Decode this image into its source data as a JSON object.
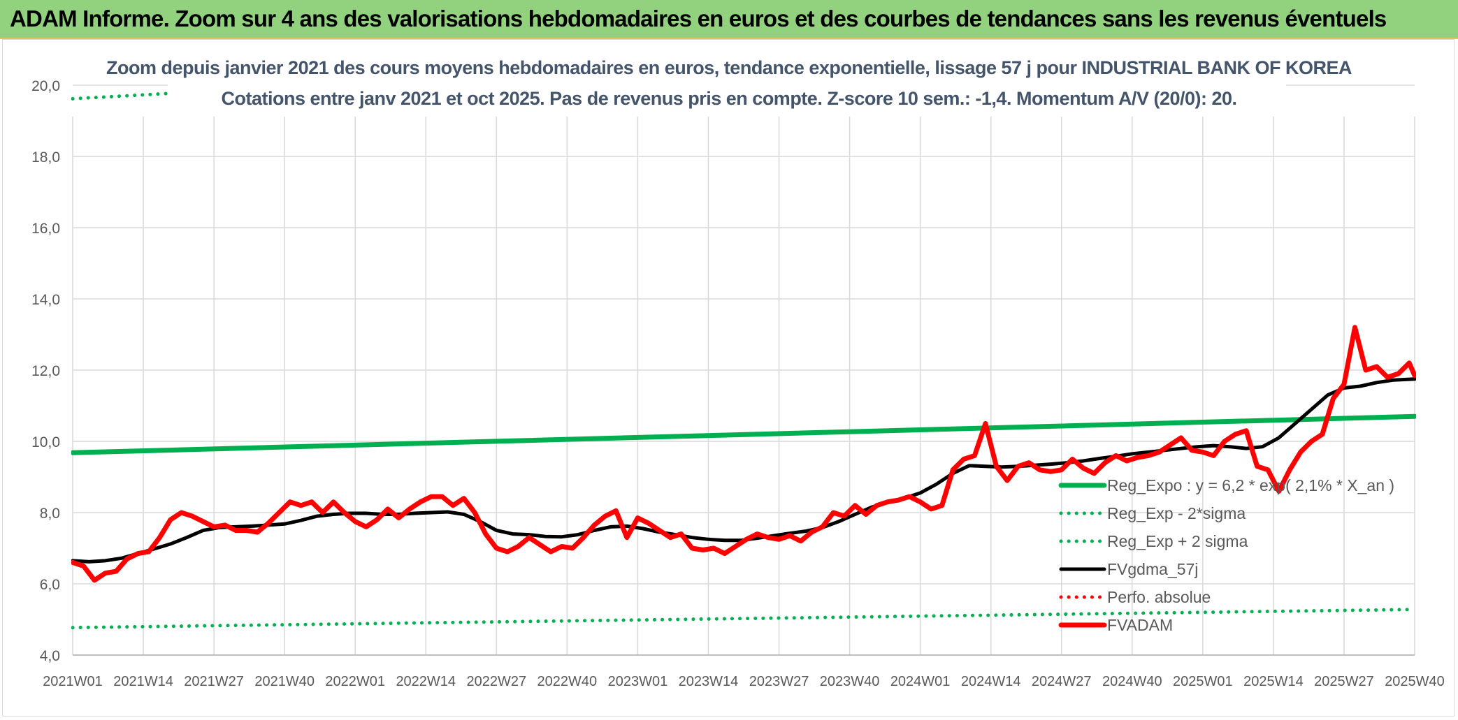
{
  "banner": {
    "title": "ADAM Informe. Zoom sur 4 ans des valorisations hebdomadaires en euros et des courbes de tendances sans les revenus éventuels"
  },
  "colors": {
    "banner_bg": "#92d27f",
    "trend": "#00b050",
    "band": "#00b050",
    "smooth": "#000000",
    "price": "#ff0000",
    "perf": "#ff0000",
    "grid": "#d9d9d9",
    "title": "#44546a"
  },
  "chart_data": {
    "type": "line",
    "title": "Zoom depuis janvier 2021 des cours moyens hebdomadaires en euros, tendance exponentielle, lissage 57 j pour INDUSTRIAL BANK OF KOREA",
    "subtitle": "Cotations entre janv 2021 et oct 2025. Pas de revenus pris en compte. Z-score 10 sem.: -1,4. Momentum A/V (20/0): 20.",
    "ylim": [
      4.0,
      20.0
    ],
    "yticks": [
      "4,0",
      "6,0",
      "8,0",
      "10,0",
      "12,0",
      "14,0",
      "16,0",
      "18,0",
      "20,0"
    ],
    "grid": true,
    "legend_position": "right",
    "x_categories": [
      "2021W01",
      "2021W14",
      "2021W27",
      "2021W40",
      "2022W01",
      "2022W14",
      "2022W27",
      "2022W40",
      "2023W01",
      "2023W14",
      "2023W27",
      "2023W40",
      "2024W01",
      "2024W14",
      "2024W27",
      "2024W40",
      "2025W01",
      "2025W14",
      "2025W27",
      "2025W40"
    ],
    "x_range_weeks": [
      0,
      247
    ],
    "series": [
      {
        "name": "Reg_Expo : y = 6,2 * exp( 2,1% *  X_an )",
        "style": "solid-thick",
        "color": "#00b050",
        "x": [
          0,
          247
        ],
        "values": [
          9.68,
          10.7
        ]
      },
      {
        "name": "Reg_Exp - 2*sigma",
        "style": "dotted",
        "color": "#00b050",
        "x": [
          0,
          247
        ],
        "values": [
          4.77,
          5.28
        ]
      },
      {
        "name": "Reg_Exp + 2 sigma",
        "style": "dotted",
        "color": "#00b050",
        "x": [
          0,
          247
        ],
        "values": [
          19.62,
          21.7
        ]
      },
      {
        "name": "FVgdma_57j",
        "style": "solid",
        "color": "#000000",
        "x": [
          0,
          3,
          6,
          9,
          12,
          15,
          18,
          21,
          24,
          27,
          30,
          33,
          36,
          39,
          42,
          45,
          48,
          51,
          54,
          57,
          60,
          63,
          66,
          69,
          72,
          75,
          78,
          81,
          84,
          87,
          90,
          93,
          96,
          99,
          102,
          105,
          108,
          111,
          114,
          117,
          120,
          123,
          126,
          129,
          132,
          135,
          138,
          141,
          144,
          147,
          150,
          153,
          156,
          159,
          162,
          165,
          168,
          171,
          174,
          177,
          180,
          183,
          186,
          189,
          192,
          195,
          198,
          201,
          204,
          207,
          210,
          213,
          216,
          219,
          222,
          225,
          228,
          231,
          234,
          237,
          240,
          243,
          247
        ],
        "values": [
          6.65,
          6.62,
          6.65,
          6.72,
          6.85,
          6.98,
          7.12,
          7.3,
          7.5,
          7.58,
          7.6,
          7.62,
          7.65,
          7.68,
          7.78,
          7.9,
          7.95,
          7.98,
          7.98,
          7.95,
          7.95,
          7.98,
          8.0,
          8.02,
          7.95,
          7.75,
          7.5,
          7.4,
          7.38,
          7.33,
          7.32,
          7.38,
          7.5,
          7.6,
          7.62,
          7.55,
          7.45,
          7.38,
          7.3,
          7.25,
          7.22,
          7.22,
          7.28,
          7.35,
          7.42,
          7.48,
          7.58,
          7.75,
          7.95,
          8.15,
          8.3,
          8.4,
          8.55,
          8.8,
          9.1,
          9.32,
          9.3,
          9.28,
          9.3,
          9.33,
          9.36,
          9.4,
          9.45,
          9.52,
          9.58,
          9.65,
          9.7,
          9.75,
          9.8,
          9.85,
          9.88,
          9.85,
          9.8,
          9.85,
          10.1,
          10.5,
          10.9,
          11.3,
          11.5,
          11.55,
          11.65,
          11.72,
          11.75
        ]
      },
      {
        "name": "Perfo. absolue",
        "style": "dotted",
        "color": "#ff0000",
        "x": [],
        "values": []
      },
      {
        "name": "FVADAM",
        "style": "solid-thick",
        "color": "#ff0000",
        "x": [
          0,
          2,
          4,
          6,
          8,
          10,
          12,
          14,
          16,
          18,
          20,
          22,
          24,
          26,
          28,
          30,
          32,
          34,
          36,
          38,
          40,
          42,
          44,
          46,
          48,
          50,
          52,
          54,
          56,
          58,
          60,
          62,
          64,
          66,
          68,
          70,
          72,
          74,
          76,
          78,
          80,
          82,
          84,
          86,
          88,
          90,
          92,
          94,
          96,
          98,
          100,
          102,
          104,
          106,
          108,
          110,
          112,
          114,
          116,
          118,
          120,
          122,
          124,
          126,
          128,
          130,
          132,
          134,
          136,
          138,
          140,
          142,
          144,
          146,
          148,
          150,
          152,
          154,
          156,
          158,
          160,
          162,
          164,
          166,
          168,
          170,
          172,
          174,
          176,
          178,
          180,
          182,
          184,
          186,
          188,
          190,
          192,
          194,
          196,
          198,
          200,
          202,
          204,
          206,
          208,
          210,
          212,
          214,
          216,
          218,
          220,
          222,
          224,
          226,
          228,
          230,
          232,
          234,
          236,
          238,
          240,
          242,
          244,
          246,
          247
        ],
        "values": [
          6.6,
          6.5,
          6.1,
          6.3,
          6.35,
          6.7,
          6.85,
          6.9,
          7.3,
          7.8,
          8.0,
          7.9,
          7.75,
          7.6,
          7.65,
          7.5,
          7.5,
          7.45,
          7.7,
          8.0,
          8.3,
          8.2,
          8.3,
          8.0,
          8.3,
          8.0,
          7.75,
          7.6,
          7.8,
          8.1,
          7.85,
          8.1,
          8.3,
          8.45,
          8.45,
          8.2,
          8.4,
          8.0,
          7.4,
          7.0,
          6.9,
          7.05,
          7.3,
          7.1,
          6.9,
          7.05,
          7.0,
          7.3,
          7.65,
          7.9,
          8.05,
          7.3,
          7.85,
          7.7,
          7.5,
          7.3,
          7.4,
          7.0,
          6.95,
          7.0,
          6.85,
          7.05,
          7.25,
          7.4,
          7.3,
          7.25,
          7.35,
          7.2,
          7.45,
          7.6,
          8.0,
          7.9,
          8.2,
          7.95,
          8.2,
          8.3,
          8.35,
          8.45,
          8.3,
          8.1,
          8.2,
          9.2,
          9.5,
          9.6,
          10.5,
          9.3,
          8.9,
          9.3,
          9.4,
          9.2,
          9.15,
          9.2,
          9.5,
          9.25,
          9.1,
          9.4,
          9.6,
          9.45,
          9.55,
          9.6,
          9.7,
          9.9,
          10.1,
          9.75,
          9.7,
          9.6,
          10.0,
          10.2,
          10.3,
          9.3,
          9.2,
          8.6,
          9.2,
          9.7,
          10.0,
          10.2,
          11.2,
          11.6,
          13.2,
          12.0,
          12.1,
          11.8,
          11.9,
          12.2,
          11.85
        ]
      }
    ],
    "legend_order": [
      0,
      1,
      2,
      3,
      4,
      5
    ]
  }
}
